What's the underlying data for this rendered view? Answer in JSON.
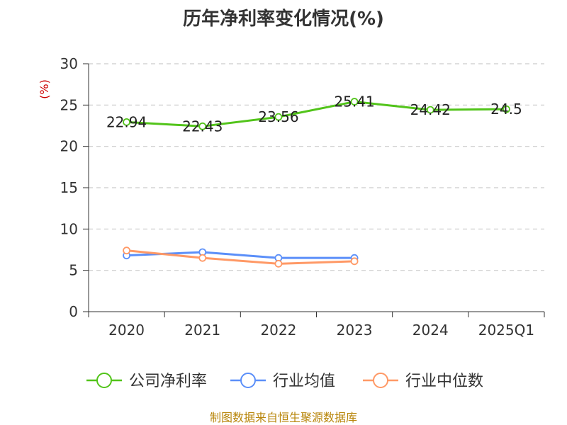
{
  "chart_data": {
    "type": "line",
    "title": "历年净利率变化情况(%)",
    "ylabel": "(%)",
    "categories": [
      "2020",
      "2021",
      "2022",
      "2023",
      "2024",
      "2025Q1"
    ],
    "yticks": [
      "0",
      "5",
      "10",
      "15",
      "20",
      "25",
      "30"
    ],
    "ylim": [
      0,
      30
    ],
    "grid": true,
    "legend_position": "bottom",
    "series": [
      {
        "name": "公司净利率",
        "color": "#52c41a",
        "values": [
          22.94,
          22.43,
          23.56,
          25.41,
          24.42,
          24.5
        ],
        "labels": [
          "22.94",
          "22.43",
          "23.56",
          "25.41",
          "24.42",
          "24.5"
        ]
      },
      {
        "name": "行业均值",
        "color": "#5b8ff9",
        "values": [
          6.8,
          7.2,
          6.5,
          6.5,
          null,
          null
        ]
      },
      {
        "name": "行业中位数",
        "color": "#ff9966",
        "values": [
          7.4,
          6.5,
          5.8,
          6.1,
          null,
          null
        ]
      }
    ]
  },
  "source": "制图数据来自恒生聚源数据库"
}
